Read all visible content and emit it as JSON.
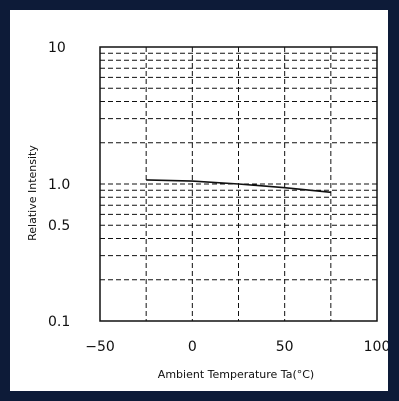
{
  "chart_data": {
    "type": "line",
    "title": "",
    "xlabel": "Ambient Temperature Ta(°C)",
    "ylabel": "Relative Intensity",
    "xlim": [
      -50,
      100
    ],
    "ylim": [
      0.1,
      10
    ],
    "yscale": "log",
    "grid": true,
    "x_ticks": [
      -50,
      0,
      50,
      100
    ],
    "x_tick_labels": [
      "−50",
      "0",
      "50",
      "100"
    ],
    "y_ticks": [
      0.1,
      0.5,
      1.0,
      10
    ],
    "y_tick_labels": [
      "0.1",
      "0.5",
      "1.0",
      "10"
    ],
    "series": [
      {
        "x": [
          -25,
          0,
          25,
          50,
          75
        ],
        "y": [
          1.07,
          1.05,
          1.0,
          0.94,
          0.87
        ]
      }
    ]
  },
  "colors": {
    "background": "#0d1b38",
    "panel": "#ffffff",
    "ink": "#111111"
  }
}
